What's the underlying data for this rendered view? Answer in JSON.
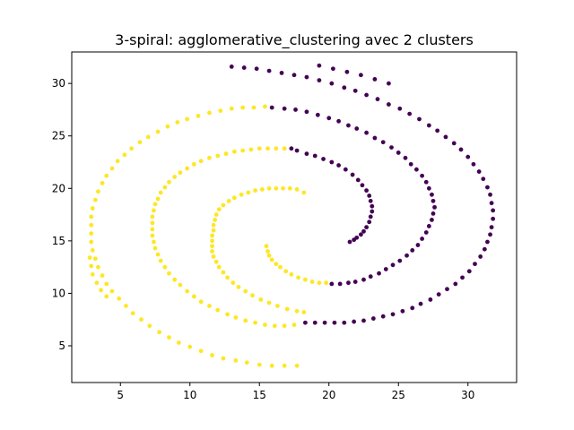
{
  "chart_data": {
    "type": "scatter",
    "title": "3-spiral: agglomerative_clustering avec 2 clusters",
    "xlabel": "",
    "ylabel": "",
    "xlim": [
      1.5,
      33.5
    ],
    "ylim": [
      1.5,
      33.0
    ],
    "xticks": [
      5,
      10,
      15,
      20,
      25,
      30
    ],
    "yticks": [
      5,
      10,
      15,
      20,
      25,
      30
    ],
    "grid": false,
    "legend": "none",
    "colors": {
      "cluster_0": "#440154",
      "cluster_1": "#fde725"
    },
    "series": [
      {
        "cluster": 0,
        "color": "#440154",
        "points": [
          [
            21.5,
            14.9
          ],
          [
            21.8,
            15.1
          ],
          [
            22.0,
            15.3
          ],
          [
            22.3,
            15.6
          ],
          [
            22.5,
            15.9
          ],
          [
            22.7,
            16.3
          ],
          [
            22.9,
            16.8
          ],
          [
            23.0,
            17.3
          ],
          [
            23.1,
            17.8
          ],
          [
            23.1,
            18.3
          ],
          [
            23.0,
            18.8
          ],
          [
            22.9,
            19.3
          ],
          [
            22.7,
            19.8
          ],
          [
            22.4,
            20.3
          ],
          [
            22.1,
            20.8
          ],
          [
            21.7,
            21.3
          ],
          [
            21.2,
            21.8
          ],
          [
            20.7,
            22.2
          ],
          [
            20.2,
            22.5
          ],
          [
            19.6,
            22.8
          ],
          [
            19.0,
            23.1
          ],
          [
            18.4,
            23.3
          ],
          [
            17.7,
            23.6
          ],
          [
            17.3,
            23.8
          ],
          [
            20.2,
            10.9
          ],
          [
            20.8,
            10.9
          ],
          [
            21.4,
            11.0
          ],
          [
            21.9,
            11.1
          ],
          [
            22.5,
            11.3
          ],
          [
            23.0,
            11.6
          ],
          [
            23.6,
            11.9
          ],
          [
            24.1,
            12.3
          ],
          [
            24.6,
            12.7
          ],
          [
            25.1,
            13.1
          ],
          [
            25.6,
            13.6
          ],
          [
            26.0,
            14.1
          ],
          [
            26.4,
            14.6
          ],
          [
            26.7,
            15.2
          ],
          [
            27.0,
            15.8
          ],
          [
            27.2,
            16.4
          ],
          [
            27.4,
            17.0
          ],
          [
            27.5,
            17.6
          ],
          [
            27.6,
            18.2
          ],
          [
            27.5,
            18.8
          ],
          [
            27.4,
            19.4
          ],
          [
            27.2,
            20.0
          ],
          [
            27.0,
            20.6
          ],
          [
            26.7,
            21.2
          ],
          [
            26.3,
            21.8
          ],
          [
            25.9,
            22.3
          ],
          [
            25.5,
            22.9
          ],
          [
            25.0,
            23.4
          ],
          [
            24.5,
            23.9
          ],
          [
            23.9,
            24.4
          ],
          [
            23.3,
            24.8
          ],
          [
            22.7,
            25.3
          ],
          [
            22.0,
            25.7
          ],
          [
            21.4,
            26.0
          ],
          [
            20.7,
            26.4
          ],
          [
            20.0,
            26.7
          ],
          [
            19.2,
            27.0
          ],
          [
            18.4,
            27.3
          ],
          [
            17.6,
            27.5
          ],
          [
            16.8,
            27.6
          ],
          [
            15.9,
            27.7
          ],
          [
            18.3,
            7.2
          ],
          [
            19.0,
            7.2
          ],
          [
            19.7,
            7.2
          ],
          [
            20.4,
            7.2
          ],
          [
            21.1,
            7.2
          ],
          [
            21.8,
            7.3
          ],
          [
            22.5,
            7.4
          ],
          [
            23.2,
            7.6
          ],
          [
            23.9,
            7.8
          ],
          [
            24.6,
            8.0
          ],
          [
            25.3,
            8.3
          ],
          [
            26.0,
            8.6
          ],
          [
            26.6,
            9.0
          ],
          [
            27.3,
            9.4
          ],
          [
            27.9,
            9.9
          ],
          [
            28.5,
            10.4
          ],
          [
            29.1,
            10.9
          ],
          [
            29.6,
            11.5
          ],
          [
            30.1,
            12.1
          ],
          [
            30.5,
            12.8
          ],
          [
            30.9,
            13.5
          ],
          [
            31.2,
            14.2
          ],
          [
            31.4,
            14.9
          ],
          [
            31.6,
            15.6
          ],
          [
            31.7,
            16.3
          ],
          [
            31.8,
            17.1
          ],
          [
            31.8,
            17.9
          ],
          [
            31.7,
            18.6
          ],
          [
            31.6,
            19.4
          ],
          [
            31.4,
            20.1
          ],
          [
            31.1,
            20.9
          ],
          [
            30.8,
            21.6
          ],
          [
            30.4,
            22.3
          ],
          [
            30.0,
            23.0
          ],
          [
            29.5,
            23.7
          ],
          [
            29.0,
            24.3
          ],
          [
            28.4,
            24.9
          ],
          [
            27.8,
            25.5
          ],
          [
            27.2,
            26.0
          ],
          [
            26.5,
            26.6
          ],
          [
            25.8,
            27.1
          ],
          [
            25.1,
            27.6
          ],
          [
            24.3,
            28.0
          ],
          [
            23.5,
            28.5
          ],
          [
            22.7,
            28.9
          ],
          [
            21.9,
            29.3
          ],
          [
            21.1,
            29.6
          ],
          [
            20.2,
            30.0
          ],
          [
            19.3,
            30.3
          ],
          [
            18.4,
            30.6
          ],
          [
            17.5,
            30.8
          ],
          [
            16.6,
            31.0
          ],
          [
            15.7,
            31.2
          ],
          [
            14.8,
            31.4
          ],
          [
            13.9,
            31.5
          ],
          [
            13.0,
            31.6
          ],
          [
            19.3,
            31.7
          ],
          [
            20.3,
            31.4
          ],
          [
            21.3,
            31.1
          ],
          [
            22.3,
            30.8
          ],
          [
            23.3,
            30.4
          ],
          [
            24.3,
            30.0
          ]
        ]
      },
      {
        "cluster": 1,
        "color": "#fde725",
        "points": [
          [
            15.5,
            14.5
          ],
          [
            15.6,
            14.0
          ],
          [
            15.7,
            13.6
          ],
          [
            15.9,
            13.2
          ],
          [
            16.2,
            12.8
          ],
          [
            16.5,
            12.5
          ],
          [
            16.9,
            12.1
          ],
          [
            17.3,
            11.8
          ],
          [
            17.8,
            11.5
          ],
          [
            18.3,
            11.3
          ],
          [
            18.8,
            11.1
          ],
          [
            19.3,
            11.0
          ],
          [
            19.8,
            11.0
          ],
          [
            18.2,
            19.6
          ],
          [
            17.7,
            19.9
          ],
          [
            17.2,
            20.0
          ],
          [
            16.7,
            20.0
          ],
          [
            16.2,
            20.0
          ],
          [
            15.7,
            20.0
          ],
          [
            15.2,
            19.9
          ],
          [
            14.7,
            19.8
          ],
          [
            14.2,
            19.6
          ],
          [
            13.7,
            19.4
          ],
          [
            13.2,
            19.1
          ],
          [
            12.8,
            18.8
          ],
          [
            12.4,
            18.4
          ],
          [
            12.1,
            18.0
          ],
          [
            11.9,
            17.5
          ],
          [
            11.8,
            17.0
          ],
          [
            11.7,
            16.5
          ],
          [
            11.7,
            16.0
          ],
          [
            11.6,
            15.5
          ],
          [
            11.6,
            15.0
          ],
          [
            11.6,
            14.5
          ],
          [
            11.6,
            14.0
          ],
          [
            11.7,
            13.5
          ],
          [
            11.9,
            13.0
          ],
          [
            12.1,
            12.5
          ],
          [
            12.4,
            12.0
          ],
          [
            12.7,
            11.5
          ],
          [
            13.1,
            11.0
          ],
          [
            13.5,
            10.6
          ],
          [
            14.0,
            10.2
          ],
          [
            14.5,
            9.8
          ],
          [
            15.1,
            9.4
          ],
          [
            15.7,
            9.1
          ],
          [
            16.3,
            8.8
          ],
          [
            17.0,
            8.5
          ],
          [
            17.7,
            8.3
          ],
          [
            18.2,
            8.2
          ],
          [
            16.8,
            23.8
          ],
          [
            16.2,
            23.8
          ],
          [
            15.6,
            23.8
          ],
          [
            15.0,
            23.8
          ],
          [
            14.4,
            23.7
          ],
          [
            13.8,
            23.6
          ],
          [
            13.2,
            23.5
          ],
          [
            12.6,
            23.3
          ],
          [
            12.0,
            23.1
          ],
          [
            11.4,
            22.9
          ],
          [
            10.8,
            22.6
          ],
          [
            10.3,
            22.3
          ],
          [
            9.8,
            21.9
          ],
          [
            9.3,
            21.5
          ],
          [
            8.9,
            21.1
          ],
          [
            8.5,
            20.6
          ],
          [
            8.2,
            20.1
          ],
          [
            7.9,
            19.6
          ],
          [
            7.7,
            19.0
          ],
          [
            7.5,
            18.5
          ],
          [
            7.4,
            17.9
          ],
          [
            7.3,
            17.3
          ],
          [
            7.3,
            16.7
          ],
          [
            7.3,
            16.1
          ],
          [
            7.3,
            15.5
          ],
          [
            7.4,
            14.9
          ],
          [
            7.5,
            14.3
          ],
          [
            7.7,
            13.7
          ],
          [
            7.9,
            13.1
          ],
          [
            8.2,
            12.5
          ],
          [
            8.5,
            11.9
          ],
          [
            8.9,
            11.3
          ],
          [
            9.3,
            10.8
          ],
          [
            9.8,
            10.2
          ],
          [
            10.3,
            9.7
          ],
          [
            10.8,
            9.2
          ],
          [
            11.4,
            8.8
          ],
          [
            12.0,
            8.4
          ],
          [
            12.7,
            8.0
          ],
          [
            13.3,
            7.7
          ],
          [
            14.0,
            7.4
          ],
          [
            14.7,
            7.2
          ],
          [
            15.4,
            7.0
          ],
          [
            16.1,
            6.9
          ],
          [
            16.8,
            6.9
          ],
          [
            17.5,
            7.0
          ],
          [
            15.4,
            27.8
          ],
          [
            14.6,
            27.7
          ],
          [
            13.8,
            27.7
          ],
          [
            13.0,
            27.6
          ],
          [
            12.2,
            27.4
          ],
          [
            11.4,
            27.2
          ],
          [
            10.6,
            26.9
          ],
          [
            9.8,
            26.6
          ],
          [
            9.1,
            26.3
          ],
          [
            8.4,
            25.9
          ],
          [
            7.7,
            25.4
          ],
          [
            7.0,
            24.9
          ],
          [
            6.4,
            24.4
          ],
          [
            5.8,
            23.8
          ],
          [
            5.3,
            23.2
          ],
          [
            4.8,
            22.6
          ],
          [
            4.4,
            21.9
          ],
          [
            4.0,
            21.2
          ],
          [
            3.7,
            20.5
          ],
          [
            3.4,
            19.7
          ],
          [
            3.2,
            18.9
          ],
          [
            3.0,
            18.1
          ],
          [
            2.9,
            17.3
          ],
          [
            2.9,
            16.5
          ],
          [
            2.9,
            15.7
          ],
          [
            2.9,
            14.9
          ],
          [
            3.0,
            14.1
          ],
          [
            3.2,
            13.3
          ],
          [
            3.4,
            12.5
          ],
          [
            3.7,
            11.7
          ],
          [
            4.0,
            10.9
          ],
          [
            4.4,
            10.2
          ],
          [
            4.9,
            9.5
          ],
          [
            5.4,
            8.8
          ],
          [
            5.9,
            8.1
          ],
          [
            6.5,
            7.5
          ],
          [
            7.1,
            6.9
          ],
          [
            7.8,
            6.3
          ],
          [
            8.5,
            5.8
          ],
          [
            9.2,
            5.3
          ],
          [
            10.0,
            4.9
          ],
          [
            10.8,
            4.5
          ],
          [
            11.6,
            4.1
          ],
          [
            12.4,
            3.8
          ],
          [
            13.3,
            3.6
          ],
          [
            14.1,
            3.4
          ],
          [
            15.0,
            3.2
          ],
          [
            15.9,
            3.1
          ],
          [
            16.8,
            3.1
          ],
          [
            17.7,
            3.1
          ],
          [
            4.0,
            9.7
          ],
          [
            3.6,
            10.3
          ],
          [
            3.3,
            11.0
          ],
          [
            3.0,
            11.8
          ],
          [
            2.9,
            12.6
          ],
          [
            2.8,
            13.4
          ]
        ]
      }
    ]
  }
}
